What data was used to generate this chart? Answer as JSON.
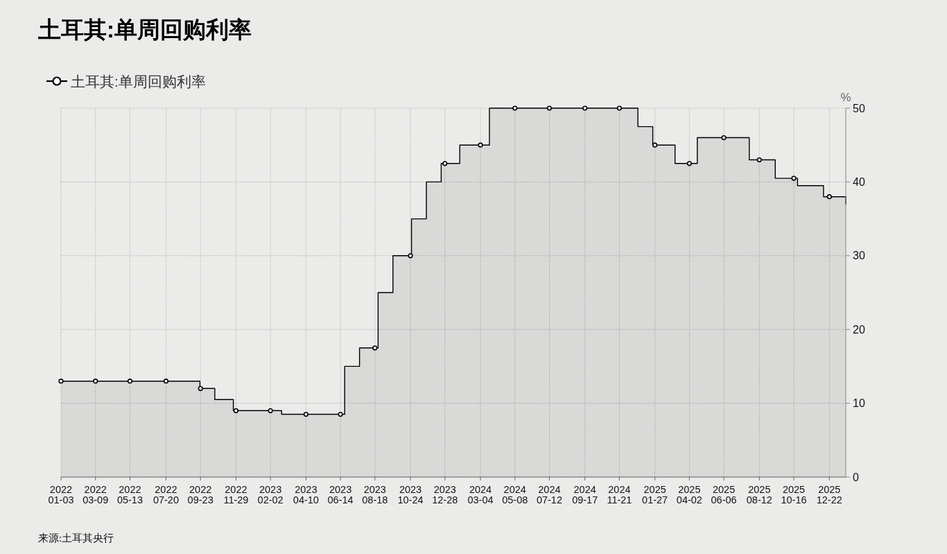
{
  "chart_data": {
    "type": "area",
    "title": "土耳其:单周回购利率",
    "ylabel": "%",
    "annotations": [
      "来源:土耳其央行"
    ],
    "xlim": [
      "2022-01-03",
      "2026-01-22"
    ],
    "xticks": [
      {
        "value": "2022-01-03",
        "label": "2022\n01-03"
      },
      {
        "value": "2022-03-09",
        "label": "2022\n03-09"
      },
      {
        "value": "2022-05-13",
        "label": "2022\n05-13"
      },
      {
        "value": "2022-07-20",
        "label": "2022\n07-20"
      },
      {
        "value": "2022-09-23",
        "label": "2022\n09-23"
      },
      {
        "value": "2022-11-29",
        "label": "2022\n11-29"
      },
      {
        "value": "2023-02-02",
        "label": "2023\n02-02"
      },
      {
        "value": "2023-04-10",
        "label": "2023\n04-10"
      },
      {
        "value": "2023-06-14",
        "label": "2023\n06-14"
      },
      {
        "value": "2023-08-18",
        "label": "2023\n08-18"
      },
      {
        "value": "2023-10-24",
        "label": "2023\n10-24"
      },
      {
        "value": "2023-12-28",
        "label": "2023\n12-28"
      },
      {
        "value": "2024-03-04",
        "label": "2024\n03-04"
      },
      {
        "value": "2024-05-08",
        "label": "2024\n05-08"
      },
      {
        "value": "2024-07-12",
        "label": "2024\n07-12"
      },
      {
        "value": "2024-09-17",
        "label": "2024\n09-17"
      },
      {
        "value": "2024-11-21",
        "label": "2024\n11-21"
      },
      {
        "value": "2025-01-27",
        "label": "2025\n01-27"
      },
      {
        "value": "2025-04-02",
        "label": "2025\n04-02"
      },
      {
        "value": "2025-06-06",
        "label": "2025\n06-06"
      },
      {
        "value": "2025-08-12",
        "label": "2025\n08-12"
      },
      {
        "value": "2025-10-16",
        "label": "2025\n10-16"
      },
      {
        "value": "2025-12-22",
        "label": "2025\n12-22"
      }
    ],
    "ylim": [
      0,
      50
    ],
    "yticks": [
      0,
      10,
      20,
      30,
      40,
      50
    ],
    "grid": true,
    "legend": "top left",
    "series": [
      {
        "name": "土耳其:单周回购利率",
        "color": "#000000",
        "x": [
          "2022-01-03",
          "2022-09-22",
          "2022-09-22",
          "2022-10-20",
          "2022-10-20",
          "2022-11-24",
          "2022-11-24",
          "2023-02-23",
          "2023-02-23",
          "2023-06-22",
          "2023-06-22",
          "2023-07-20",
          "2023-07-20",
          "2023-08-24",
          "2023-08-24",
          "2023-09-21",
          "2023-09-21",
          "2023-10-26",
          "2023-10-26",
          "2023-11-23",
          "2023-11-23",
          "2023-12-21",
          "2023-12-21",
          "2024-01-25",
          "2024-01-25",
          "2024-03-21",
          "2024-03-21",
          "2024-12-26",
          "2024-12-26",
          "2025-01-23",
          "2025-01-23",
          "2025-03-06",
          "2025-03-06",
          "2025-04-17",
          "2025-04-17",
          "2025-07-24",
          "2025-07-24",
          "2025-09-11",
          "2025-09-11",
          "2025-10-23",
          "2025-10-23",
          "2025-12-11",
          "2025-12-11",
          "2026-01-22",
          "2026-01-22"
        ],
        "values": [
          13,
          13,
          12,
          12,
          10.5,
          10.5,
          9,
          9,
          8.5,
          8.5,
          15,
          15,
          17.5,
          17.5,
          25,
          25,
          30,
          30,
          35,
          35,
          40,
          40,
          42.5,
          42.5,
          45,
          45,
          50,
          50,
          47.5,
          47.5,
          45,
          45,
          42.5,
          42.5,
          46,
          46,
          43,
          43,
          40.5,
          40.5,
          39.5,
          39.5,
          38,
          38,
          37
        ]
      },
      {
        "type": "scatter",
        "marker": "circle",
        "color": "#000000",
        "x": [
          "2022-01-03",
          "2022-03-09",
          "2022-05-13",
          "2022-07-20",
          "2022-09-23",
          "2022-11-29",
          "2023-02-02",
          "2023-04-10",
          "2023-06-14",
          "2023-08-18",
          "2023-10-24",
          "2023-12-28",
          "2024-03-04",
          "2024-05-08",
          "2024-07-12",
          "2024-09-17",
          "2024-11-21",
          "2025-01-27",
          "2025-04-02",
          "2025-06-06",
          "2025-08-12",
          "2025-10-16",
          "2025-12-22"
        ],
        "values": [
          13,
          13,
          13,
          13,
          12,
          9,
          9,
          8.5,
          8.5,
          17.5,
          30,
          42.5,
          45,
          50,
          50,
          50,
          50,
          45,
          42.5,
          46,
          43,
          40.5,
          38
        ]
      }
    ]
  }
}
